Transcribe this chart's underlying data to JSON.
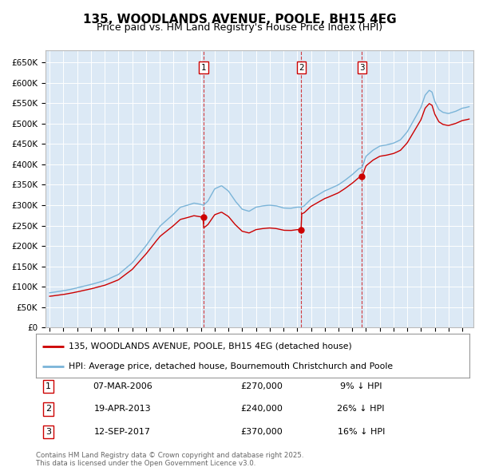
{
  "title": "135, WOODLANDS AVENUE, POOLE, BH15 4EG",
  "subtitle": "Price paid vs. HM Land Registry's House Price Index (HPI)",
  "ylabel_ticks": [
    "£0",
    "£50K",
    "£100K",
    "£150K",
    "£200K",
    "£250K",
    "£300K",
    "£350K",
    "£400K",
    "£450K",
    "£500K",
    "£550K",
    "£600K",
    "£650K"
  ],
  "ytick_values": [
    0,
    50000,
    100000,
    150000,
    200000,
    250000,
    300000,
    350000,
    400000,
    450000,
    500000,
    550000,
    600000,
    650000
  ],
  "xlim_start": 1994.7,
  "xlim_end": 2025.8,
  "ylim_min": 0,
  "ylim_max": 680000,
  "background_color": "#dce9f5",
  "grid_color": "#ffffff",
  "red_line_color": "#cc0000",
  "blue_line_color": "#7ab4d8",
  "transaction_dates": [
    2006.18,
    2013.3,
    2017.71
  ],
  "transaction_prices": [
    270000,
    240000,
    370000
  ],
  "transaction_labels": [
    "1",
    "2",
    "3"
  ],
  "transaction_date_labels": [
    "07-MAR-2006",
    "19-APR-2013",
    "12-SEP-2017"
  ],
  "transaction_price_labels": [
    "£270,000",
    "£240,000",
    "£370,000"
  ],
  "transaction_hpi_labels": [
    "9% ↓ HPI",
    "26% ↓ HPI",
    "16% ↓ HPI"
  ],
  "legend_red_label": "135, WOODLANDS AVENUE, POOLE, BH15 4EG (detached house)",
  "legend_blue_label": "HPI: Average price, detached house, Bournemouth Christchurch and Poole",
  "footer_text": "Contains HM Land Registry data © Crown copyright and database right 2025.\nThis data is licensed under the Open Government Licence v3.0.",
  "title_fontsize": 11,
  "subtitle_fontsize": 9,
  "tick_fontsize": 7.5,
  "label_fontsize": 8
}
